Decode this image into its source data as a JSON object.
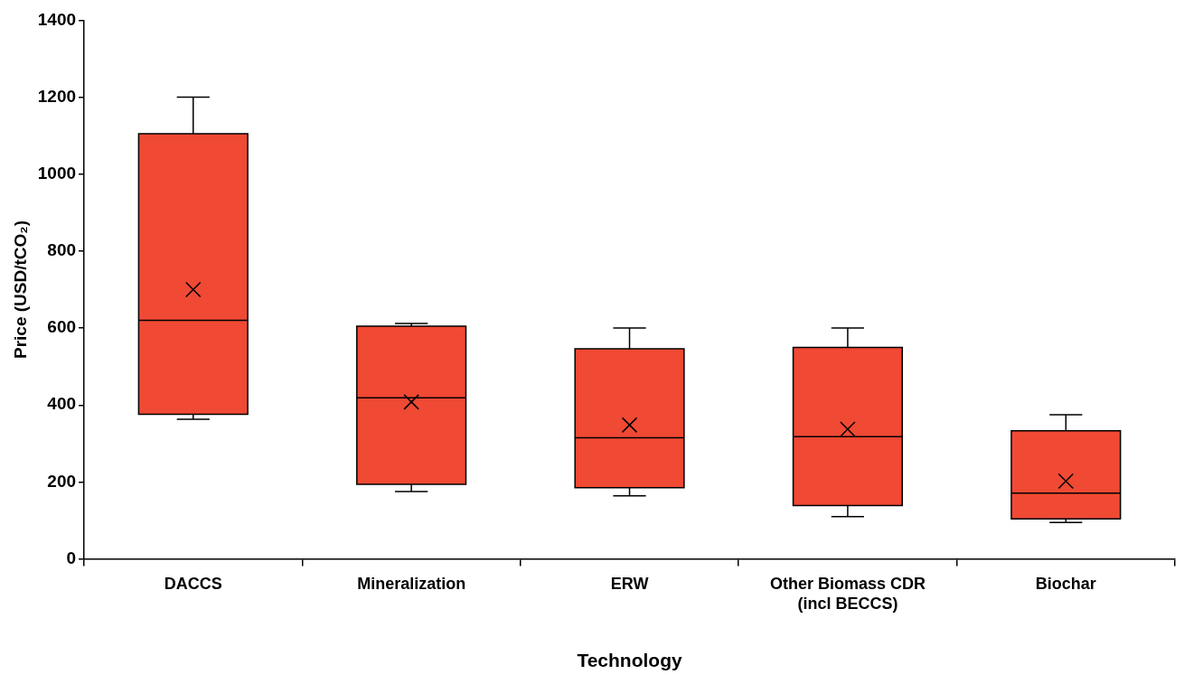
{
  "chart_data": {
    "type": "box",
    "xlabel": "Technology",
    "ylabel": "Price (USD/tCO₂)",
    "categories": [
      "DACCS",
      "Mineralization",
      "ERW",
      "Other Biomass CDR\n(incl BECCS)",
      "Biochar"
    ],
    "color": "#f04934",
    "marker": "cross",
    "ylim": [
      0,
      1400
    ],
    "yticks": [
      0,
      200,
      400,
      600,
      800,
      1000,
      1200,
      1400
    ],
    "boxes": [
      {
        "low": 363,
        "q1": 376,
        "median": 620,
        "q3": 1105,
        "high": 1200,
        "mean": 700
      },
      {
        "low": 175,
        "q1": 194,
        "median": 419,
        "q3": 605,
        "high": 612,
        "mean": 408
      },
      {
        "low": 164,
        "q1": 185,
        "median": 315,
        "q3": 546,
        "high": 600,
        "mean": 348
      },
      {
        "low": 110,
        "q1": 139,
        "median": 318,
        "q3": 550,
        "high": 600,
        "mean": 337
      },
      {
        "low": 95,
        "q1": 104,
        "median": 171,
        "q3": 333,
        "high": 375,
        "mean": 202
      }
    ]
  }
}
